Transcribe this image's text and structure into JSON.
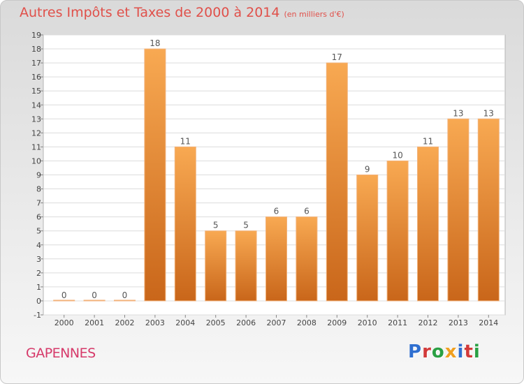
{
  "header": {
    "title": "Autres Impôts et Taxes de 2000 à 2014",
    "unit": "(en milliers d'€)"
  },
  "footer": {
    "place": "GAPENNES",
    "logo_letters": [
      "P",
      "r",
      "o",
      "x",
      "i",
      "t",
      "i"
    ],
    "logo_colors": [
      "#2f6fd0",
      "#d23a3a",
      "#2aa044",
      "#f0a020",
      "#2f6fd0",
      "#d23a3a",
      "#2aa044"
    ]
  },
  "chart_data": {
    "type": "bar",
    "title": "Autres Impôts et Taxes de 2000 à 2014",
    "subtitle": "(en milliers d'€)",
    "categories": [
      "2000",
      "2001",
      "2002",
      "2003",
      "2004",
      "2005",
      "2006",
      "2007",
      "2008",
      "2009",
      "2010",
      "2011",
      "2012",
      "2013",
      "2014"
    ],
    "values": [
      0,
      0,
      0,
      18,
      11,
      5,
      5,
      6,
      6,
      17,
      9,
      10,
      11,
      13,
      13
    ],
    "ylim": [
      -1,
      19
    ],
    "yticks": [
      -1,
      0,
      1,
      2,
      3,
      4,
      5,
      6,
      7,
      8,
      9,
      10,
      11,
      12,
      13,
      14,
      15,
      16,
      17,
      18,
      19
    ],
    "grid": true,
    "bar_color_top": "#f8a952",
    "bar_color_bottom": "#c9661a"
  }
}
